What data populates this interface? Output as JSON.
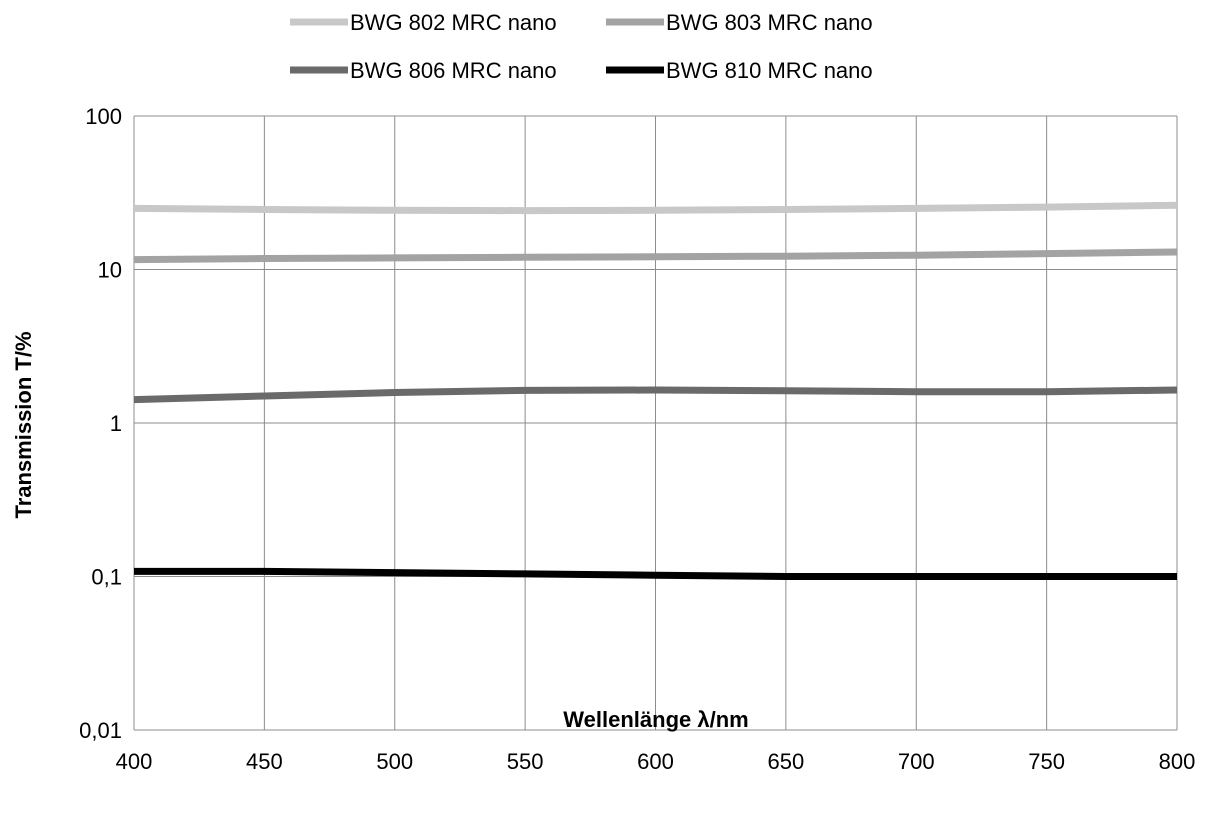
{
  "chart_data": {
    "type": "line",
    "title": "",
    "xlabel": "Wellenlänge λ/nm",
    "ylabel": "Transmission T/%",
    "x_ticks": [
      "400",
      "450",
      "500",
      "550",
      "600",
      "650",
      "700",
      "750",
      "800"
    ],
    "y_ticks": [
      "0,01",
      "0,1",
      "1",
      "10",
      "100"
    ],
    "xlim": [
      400,
      800
    ],
    "ylim": [
      0.01,
      100
    ],
    "y_scale": "log",
    "grid": true,
    "legend_position": "top-center",
    "x": [
      400,
      450,
      500,
      550,
      600,
      650,
      700,
      750,
      800
    ],
    "series": [
      {
        "name": "BWG 802 MRC nano",
        "color": "#c8c8c8",
        "values": [
          25.0,
          24.6,
          24.3,
          24.2,
          24.3,
          24.6,
          25.0,
          25.5,
          26.2
        ]
      },
      {
        "name": "BWG 803 MRC nano",
        "color": "#a3a3a3",
        "values": [
          11.6,
          11.8,
          11.9,
          12.0,
          12.1,
          12.2,
          12.4,
          12.7,
          13.0
        ]
      },
      {
        "name": "BWG 806 MRC nano",
        "color": "#6a6a6a",
        "values": [
          1.42,
          1.5,
          1.58,
          1.63,
          1.64,
          1.62,
          1.6,
          1.6,
          1.64
        ]
      },
      {
        "name": "BWG 810 MRC nano",
        "color": "#000000",
        "values": [
          0.108,
          0.108,
          0.106,
          0.104,
          0.102,
          0.1,
          0.1,
          0.1,
          0.1
        ]
      }
    ]
  }
}
